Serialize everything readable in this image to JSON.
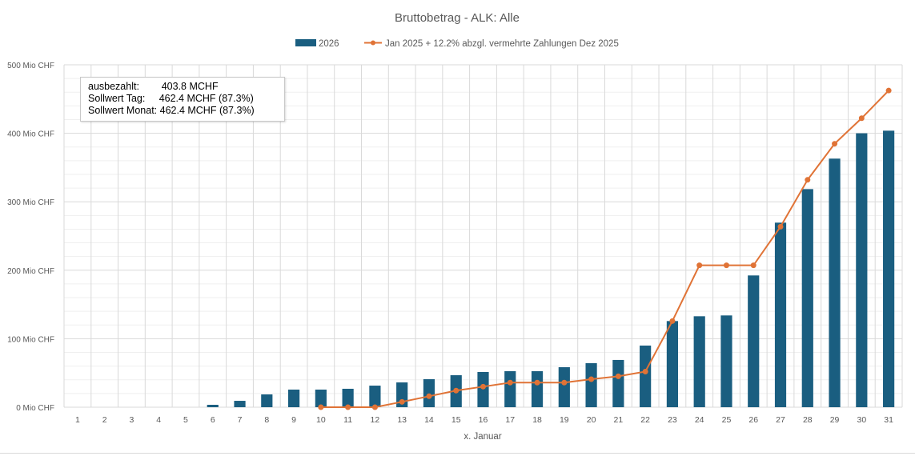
{
  "chart_data": {
    "type": "bar+line",
    "title": "Bruttobetrag - ALK: Alle",
    "xlabel": "x. Januar",
    "ylabel": "",
    "ylim": [
      0,
      500
    ],
    "yticks": [
      0,
      100,
      200,
      300,
      400,
      500
    ],
    "ytick_labels": [
      "0 Mio CHF",
      "100 Mio CHF",
      "200 Mio CHF",
      "300 Mio CHF",
      "400 Mio CHF",
      "500 Mio CHF"
    ],
    "categories": [
      "1",
      "2",
      "3",
      "4",
      "5",
      "6",
      "7",
      "8",
      "9",
      "10",
      "11",
      "12",
      "13",
      "14",
      "15",
      "16",
      "17",
      "18",
      "19",
      "20",
      "21",
      "22",
      "23",
      "24",
      "25",
      "26",
      "27",
      "28",
      "29",
      "30",
      "31"
    ],
    "grid": true,
    "legend_position": "top",
    "series": [
      {
        "name": "2026",
        "type": "bar",
        "color": "#1a5e80",
        "values": [
          0,
          0,
          0,
          0,
          0,
          3.5,
          9.3,
          18.7,
          25.7,
          25.7,
          26.9,
          31.5,
          36.2,
          40.9,
          46.7,
          51.4,
          52.6,
          52.6,
          58.4,
          64.3,
          69,
          90,
          125.8,
          132.8,
          134,
          192.4,
          269.5,
          318.5,
          363,
          400,
          403.8
        ]
      },
      {
        "name": "Jan 2025 + 12.2% abzgl. vermehrte Zahlungen Dez 2025",
        "type": "line",
        "color": "#e07336",
        "values": [
          null,
          null,
          null,
          null,
          null,
          null,
          null,
          null,
          null,
          0,
          0,
          0,
          7.8,
          16,
          24.2,
          30,
          35.9,
          35.9,
          35.9,
          40.9,
          45.1,
          52,
          125.8,
          207.2,
          207.2,
          207.2,
          263.6,
          332,
          384.7,
          422,
          462.4
        ]
      }
    ]
  },
  "infobox": {
    "row1": "ausbezahlt:        403.8 MCHF",
    "row2": "Sollwert Tag:     462.4 MCHF (87.3%)",
    "row3": "Sollwert Monat: 462.4 MCHF (87.3%)"
  }
}
